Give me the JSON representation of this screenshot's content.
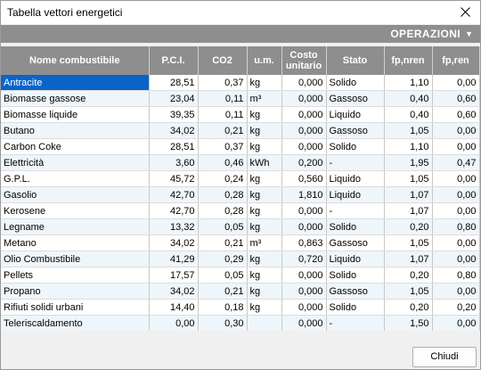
{
  "window": {
    "title": "Tabella vettori energetici"
  },
  "toolbar": {
    "operations_label": "OPERAZIONI"
  },
  "table": {
    "headers": {
      "name": "Nome combustibile",
      "pci": "P.C.I.",
      "co2": "CO2",
      "um": "u.m.",
      "cost_line1": "Costo",
      "cost_line2": "unitario",
      "state": "Stato",
      "fpnren": "fp,nren",
      "fpren": "fp,ren"
    },
    "rows": [
      {
        "name": "Antracite",
        "pci": "28,51",
        "co2": "0,37",
        "um": "kg",
        "cost": "0,000",
        "state": "Solido",
        "fpnren": "1,10",
        "fpren": "0,00"
      },
      {
        "name": "Biomasse gassose",
        "pci": "23,04",
        "co2": "0,11",
        "um": "m³",
        "cost": "0,000",
        "state": "Gassoso",
        "fpnren": "0,40",
        "fpren": "0,60"
      },
      {
        "name": "Biomasse liquide",
        "pci": "39,35",
        "co2": "0,11",
        "um": "kg",
        "cost": "0,000",
        "state": "Liquido",
        "fpnren": "0,40",
        "fpren": "0,60"
      },
      {
        "name": "Butano",
        "pci": "34,02",
        "co2": "0,21",
        "um": "kg",
        "cost": "0,000",
        "state": "Gassoso",
        "fpnren": "1,05",
        "fpren": "0,00"
      },
      {
        "name": "Carbon Coke",
        "pci": "28,51",
        "co2": "0,37",
        "um": "kg",
        "cost": "0,000",
        "state": "Solido",
        "fpnren": "1,10",
        "fpren": "0,00"
      },
      {
        "name": "Elettricità",
        "pci": "3,60",
        "co2": "0,46",
        "um": "kWh",
        "cost": "0,200",
        "state": "-",
        "fpnren": "1,95",
        "fpren": "0,47"
      },
      {
        "name": "G.P.L.",
        "pci": "45,72",
        "co2": "0,24",
        "um": "kg",
        "cost": "0,560",
        "state": "Liquido",
        "fpnren": "1,05",
        "fpren": "0,00"
      },
      {
        "name": "Gasolio",
        "pci": "42,70",
        "co2": "0,28",
        "um": "kg",
        "cost": "1,810",
        "state": "Liquido",
        "fpnren": "1,07",
        "fpren": "0,00"
      },
      {
        "name": "Kerosene",
        "pci": "42,70",
        "co2": "0,28",
        "um": "kg",
        "cost": "0,000",
        "state": "-",
        "fpnren": "1,07",
        "fpren": "0,00"
      },
      {
        "name": "Legname",
        "pci": "13,32",
        "co2": "0,05",
        "um": "kg",
        "cost": "0,000",
        "state": "Solido",
        "fpnren": "0,20",
        "fpren": "0,80"
      },
      {
        "name": "Metano",
        "pci": "34,02",
        "co2": "0,21",
        "um": "m³",
        "cost": "0,863",
        "state": "Gassoso",
        "fpnren": "1,05",
        "fpren": "0,00"
      },
      {
        "name": "Olio Combustibile",
        "pci": "41,29",
        "co2": "0,29",
        "um": "kg",
        "cost": "0,720",
        "state": "Liquido",
        "fpnren": "1,07",
        "fpren": "0,00"
      },
      {
        "name": "Pellets",
        "pci": "17,57",
        "co2": "0,05",
        "um": "kg",
        "cost": "0,000",
        "state": "Solido",
        "fpnren": "0,20",
        "fpren": "0,80"
      },
      {
        "name": "Propano",
        "pci": "34,02",
        "co2": "0,21",
        "um": "kg",
        "cost": "0,000",
        "state": "Gassoso",
        "fpnren": "1,05",
        "fpren": "0,00"
      },
      {
        "name": "Rifiuti solidi urbani",
        "pci": "14,40",
        "co2": "0,18",
        "um": "kg",
        "cost": "0,000",
        "state": "Solido",
        "fpnren": "0,20",
        "fpren": "0,20"
      },
      {
        "name": "Teleriscaldamento",
        "pci": "0,00",
        "co2": "0,30",
        "um": "",
        "cost": "0,000",
        "state": "-",
        "fpnren": "1,50",
        "fpren": "0,00"
      }
    ]
  },
  "footer": {
    "close_label": "Chiudi"
  },
  "icons": {
    "close": "close-icon",
    "operations_arrow": "triangle-down-icon"
  },
  "colors": {
    "header_bg": "#8e8e8e",
    "selection": "#0a64c8",
    "alt_row": "#eef6fb"
  }
}
